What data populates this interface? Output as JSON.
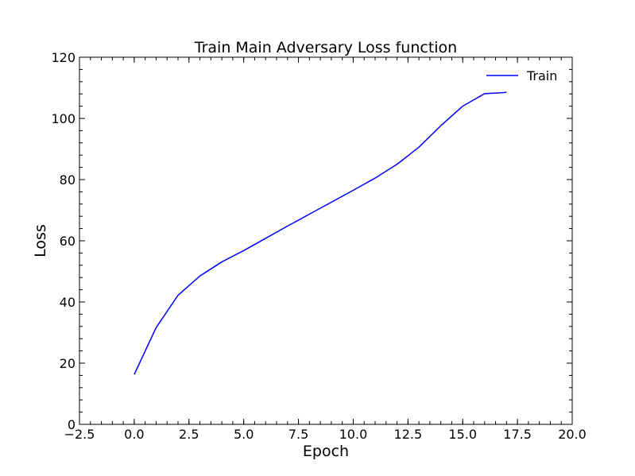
{
  "chart_data": {
    "type": "line",
    "title": "Train Main Adversary Loss function",
    "xlabel": "Epoch",
    "ylabel": "Loss",
    "xlim": [
      -2.5,
      20.0
    ],
    "ylim": [
      0,
      120
    ],
    "x_ticks": [
      -2.5,
      0.0,
      2.5,
      5.0,
      7.5,
      10.0,
      12.5,
      15.0,
      17.5,
      20.0
    ],
    "x_tick_labels": [
      "−2.5",
      "0.0",
      "2.5",
      "5.0",
      "7.5",
      "10.0",
      "12.5",
      "15.0",
      "17.5",
      "20.0"
    ],
    "y_ticks": [
      0,
      20,
      40,
      60,
      80,
      100,
      120
    ],
    "y_tick_labels": [
      "0",
      "20",
      "40",
      "60",
      "80",
      "100",
      "120"
    ],
    "legend_position": "top-right",
    "grid": false,
    "series": [
      {
        "name": "Train",
        "color": "#0000ff",
        "x": [
          0,
          1,
          2,
          3,
          4,
          5,
          6,
          7,
          8,
          9,
          10,
          11,
          12,
          13,
          14,
          15,
          16,
          17
        ],
        "y": [
          16.3,
          31.6,
          42.2,
          48.5,
          53.1,
          56.8,
          60.8,
          64.8,
          68.7,
          72.6,
          76.5,
          80.5,
          85.0,
          90.6,
          97.6,
          104.0,
          108.1,
          108.5
        ]
      }
    ]
  }
}
